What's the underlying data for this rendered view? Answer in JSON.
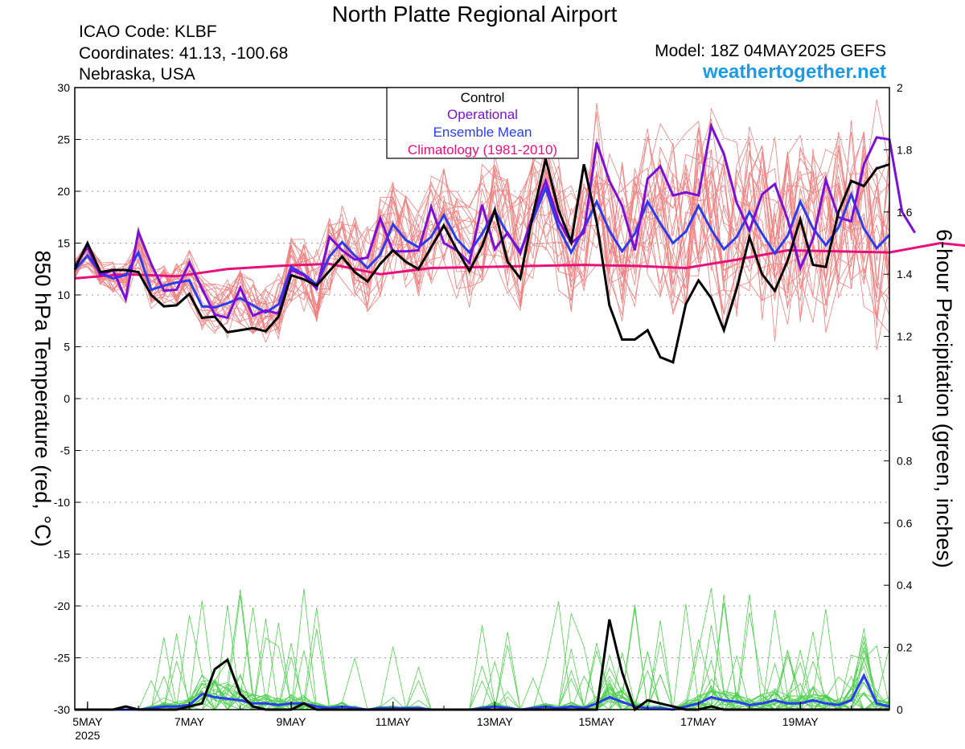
{
  "header": {
    "title": "North Platte Regional Airport",
    "icao": "ICAO Code: KLBF",
    "coordinates": "Coordinates: 41.13, -100.68",
    "location": "Nebraska, USA",
    "model": "Model: 18Z 04MAY2025 GEFS",
    "site": "weathertogether.net"
  },
  "colors": {
    "control": "#000000",
    "operational": "#7a10d8",
    "ensemble_mean": "#2a3cf0",
    "climatology": "#e8107a",
    "members_temp": "#f08080",
    "members_precip": "#50d050",
    "site": "#1a9be8"
  },
  "chart_data": {
    "type": "line",
    "ylabel": "850 hPa Temperature (red, °C)",
    "y2label": "6-hour Precipitation (green, inches)",
    "ylim": [
      -30,
      30
    ],
    "y2lim": [
      0,
      2
    ],
    "yticks": [
      30,
      25,
      20,
      15,
      10,
      5,
      0,
      -5,
      -10,
      -15,
      -20,
      -25,
      -30
    ],
    "y2ticks": [
      2,
      1.8,
      1.6,
      1.4,
      1.2,
      1,
      0.8,
      0.6,
      0.4,
      0.2,
      0
    ],
    "xticks": [
      {
        "label": "5MAY",
        "sub": "2025",
        "day": 5
      },
      {
        "label": "7MAY",
        "day": 7
      },
      {
        "label": "9MAY",
        "day": 9
      },
      {
        "label": "11MAY",
        "day": 11
      },
      {
        "label": "13MAY",
        "day": 13
      },
      {
        "label": "15MAY",
        "day": 15
      },
      {
        "label": "17MAY",
        "day": 17
      },
      {
        "label": "19MAY",
        "day": 19
      }
    ],
    "xlim_days": [
      4.75,
      20.75
    ],
    "legend": [
      "Control",
      "Operational",
      "Ensemble Mean",
      "Climatology (1981-2010)"
    ],
    "legend_placement": "top-center",
    "grid": true,
    "series": [
      {
        "name": "Control",
        "axis": "temp",
        "start_day": 4.75,
        "step_days": 0.25,
        "values": [
          12.5,
          15.0,
          12.2,
          12.4,
          12.4,
          12.2,
          10.0,
          8.9,
          9.0,
          10.1,
          7.8,
          7.9,
          6.4,
          6.6,
          6.8,
          6.5,
          7.9,
          11.9,
          11.5,
          10.9,
          12.3,
          13.7,
          12.2,
          11.3,
          13.0,
          14.3,
          13.2,
          12.5,
          14.6,
          16.7,
          14.4,
          12.3,
          14.7,
          18.2,
          13.2,
          11.6,
          17.8,
          23.1,
          18.2,
          15.1,
          22.6,
          17.0,
          9.0,
          5.7,
          5.7,
          6.6,
          4.0,
          3.5,
          9.1,
          11.4,
          9.7,
          6.6,
          10.6,
          15.6,
          12.0,
          10.4,
          13.3,
          17.3,
          12.9,
          12.7,
          18.0,
          21.0,
          20.5,
          22.2,
          22.6
        ]
      },
      {
        "name": "Operational",
        "axis": "temp",
        "start_day": 4.75,
        "step_days": 0.25,
        "values": [
          12.8,
          14.6,
          11.9,
          12.4,
          9.6,
          16.1,
          13.0,
          10.4,
          10.5,
          13.1,
          10.6,
          8.1,
          7.8,
          10.7,
          8.0,
          8.5,
          8.2,
          12.4,
          11.9,
          10.6,
          15.6,
          14.3,
          13.4,
          13.6,
          17.4,
          14.2,
          14.2,
          14.3,
          18.5,
          15.0,
          14.3,
          13.1,
          18.7,
          14.4,
          16.0,
          14.0,
          17.8,
          21.0,
          17.2,
          15.0,
          16.0,
          24.7,
          21.0,
          18.6,
          14.3,
          21.2,
          22.4,
          19.6,
          19.9,
          19.6,
          26.3,
          23.6,
          18.9,
          16.2,
          19.7,
          20.7,
          17.3,
          12.6,
          15.4,
          21.1,
          17.5,
          17.1,
          22.6,
          25.2,
          25.0,
          18.0,
          16.0
        ]
      },
      {
        "name": "Ensemble Mean",
        "axis": "temp",
        "start_day": 4.75,
        "step_days": 0.25,
        "values": [
          12.4,
          13.8,
          12.1,
          11.6,
          11.9,
          14.1,
          10.5,
          10.9,
          11.2,
          11.4,
          8.9,
          8.8,
          9.2,
          9.7,
          9.0,
          8.3,
          9.1,
          12.7,
          12.0,
          11.0,
          13.7,
          15.1,
          13.8,
          12.6,
          13.9,
          16.8,
          15.3,
          14.6,
          15.6,
          17.7,
          15.4,
          14.1,
          15.9,
          18.1,
          15.9,
          14.2,
          17.3,
          20.3,
          16.5,
          14.1,
          16.4,
          19.0,
          16.2,
          14.2,
          15.9,
          19.0,
          16.9,
          15.0,
          16.1,
          18.6,
          16.3,
          14.4,
          15.6,
          18.0,
          15.9,
          14.0,
          15.7,
          19.0,
          16.4,
          14.8,
          16.5,
          19.7,
          16.4,
          14.5,
          15.8
        ]
      },
      {
        "name": "Climatology (1981-2010)",
        "axis": "temp",
        "start_day": 4.75,
        "step_days": 1,
        "values": [
          11.6,
          12.0,
          11.8,
          12.5,
          12.8,
          13.0,
          12.0,
          12.6,
          12.7,
          12.8,
          12.9,
          12.8,
          12.6,
          13.4,
          14.3,
          14.2,
          14.1,
          15.0,
          14.5
        ]
      },
      {
        "name": "Control Precip",
        "axis": "precip",
        "start_day": 4.75,
        "step_days": 0.25,
        "values": [
          0,
          0,
          0,
          0,
          0.01,
          0,
          0,
          0,
          0,
          0.01,
          0.02,
          0.13,
          0.16,
          0.05,
          0.01,
          0,
          0,
          0,
          0.02,
          0,
          0,
          0,
          0,
          0,
          0,
          0,
          0,
          0,
          0,
          0,
          0,
          0,
          0,
          0,
          0,
          0,
          0,
          0,
          0,
          0,
          0,
          0,
          0.29,
          0.12,
          0,
          0.03,
          0.02,
          0.01,
          0,
          0,
          0.01,
          0,
          0,
          0,
          0,
          0,
          0,
          0,
          0,
          0,
          0,
          0,
          0,
          0,
          0
        ]
      },
      {
        "name": "Ensemble Mean Precip",
        "axis": "precip",
        "start_day": 4.75,
        "step_days": 0.25,
        "values": [
          0,
          0,
          0,
          0,
          0,
          0,
          0.005,
          0.01,
          0.01,
          0.015,
          0.05,
          0.04,
          0.035,
          0.03,
          0.02,
          0.02,
          0.015,
          0.02,
          0.02,
          0.01,
          0.005,
          0.01,
          0.005,
          0,
          0.005,
          0.005,
          0.005,
          0.005,
          0,
          0,
          0,
          0,
          0.005,
          0.01,
          0.005,
          0,
          0.005,
          0.01,
          0.005,
          0.01,
          0.005,
          0.02,
          0.04,
          0.025,
          0.01,
          0.005,
          0.005,
          0,
          0.01,
          0.02,
          0.04,
          0.03,
          0.025,
          0.015,
          0.02,
          0.03,
          0.02,
          0.02,
          0.03,
          0.02,
          0.015,
          0.03,
          0.11,
          0.02,
          0.01
        ]
      }
    ]
  }
}
